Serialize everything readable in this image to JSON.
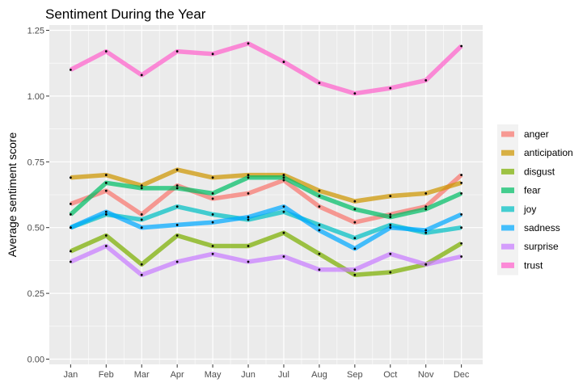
{
  "chart_data": {
    "type": "line",
    "title": "Sentiment During the Year",
    "xlabel": "",
    "ylabel": "Average sentiment score",
    "categories": [
      "Jan",
      "Feb",
      "Mar",
      "Apr",
      "May",
      "Jun",
      "Jul",
      "Aug",
      "Sep",
      "Oct",
      "Nov",
      "Dec"
    ],
    "ylim": [
      -0.02,
      1.27
    ],
    "yticks": [
      0.0,
      0.25,
      0.5,
      0.75,
      1.0,
      1.25
    ],
    "ytick_labels": [
      "0.00",
      "0.25",
      "0.50",
      "0.75",
      "1.00",
      "1.25"
    ],
    "grid": true,
    "legend_position": "right",
    "series": [
      {
        "name": "anger",
        "color": "#F8766D",
        "values": [
          0.59,
          0.64,
          0.55,
          0.66,
          0.61,
          0.63,
          0.68,
          0.58,
          0.52,
          0.55,
          0.58,
          0.7
        ]
      },
      {
        "name": "anticipation",
        "color": "#CD9600",
        "values": [
          0.69,
          0.7,
          0.66,
          0.72,
          0.69,
          0.7,
          0.7,
          0.64,
          0.6,
          0.62,
          0.63,
          0.67
        ]
      },
      {
        "name": "disgust",
        "color": "#7CAE00",
        "values": [
          0.41,
          0.47,
          0.36,
          0.47,
          0.43,
          0.43,
          0.48,
          0.4,
          0.32,
          0.33,
          0.36,
          0.44
        ]
      },
      {
        "name": "fear",
        "color": "#00BE67",
        "values": [
          0.55,
          0.67,
          0.65,
          0.65,
          0.63,
          0.69,
          0.69,
          0.62,
          0.57,
          0.54,
          0.57,
          0.63
        ]
      },
      {
        "name": "joy",
        "color": "#00BFC4",
        "values": [
          0.5,
          0.55,
          0.53,
          0.58,
          0.55,
          0.53,
          0.56,
          0.51,
          0.46,
          0.51,
          0.48,
          0.5
        ]
      },
      {
        "name": "sadness",
        "color": "#00A9FF",
        "values": [
          0.5,
          0.56,
          0.5,
          0.51,
          0.52,
          0.54,
          0.58,
          0.49,
          0.42,
          0.5,
          0.49,
          0.55
        ]
      },
      {
        "name": "surprise",
        "color": "#C77CFF",
        "values": [
          0.37,
          0.43,
          0.32,
          0.37,
          0.4,
          0.37,
          0.39,
          0.34,
          0.34,
          0.4,
          0.36,
          0.39
        ]
      },
      {
        "name": "trust",
        "color": "#FF61CC",
        "values": [
          1.1,
          1.17,
          1.08,
          1.17,
          1.16,
          1.2,
          1.13,
          1.05,
          1.01,
          1.03,
          1.06,
          1.19
        ]
      }
    ]
  }
}
